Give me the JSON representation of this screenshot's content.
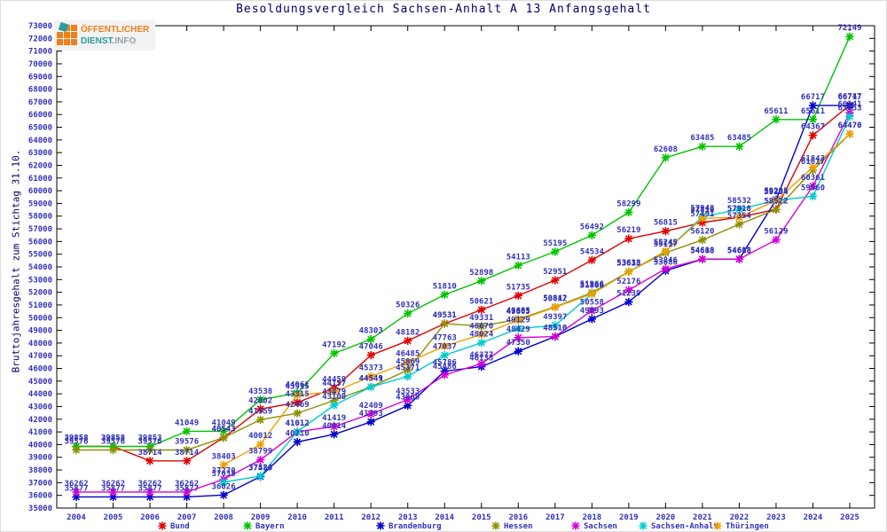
{
  "title": "Besoldungsvergleich Sachsen-Anhalt A 13 Anfangsgehalt",
  "y_axis_title": "Bruttojahresgehalt zum Stichtag 31.10.",
  "watermark": {
    "line1": "ÖFFENTLICHER",
    "line2_a": "DIENST.",
    "line2_b": "INFO"
  },
  "colors": {
    "axis_text": "#3333bb",
    "label_text": "#3333bb",
    "title_text": "#000066",
    "frame": "#000000"
  },
  "chart_data": {
    "type": "line",
    "title": "Besoldungsvergleich Sachsen-Anhalt A 13 Anfangsgehalt",
    "xlabel": "",
    "ylabel": "Bruttojahresgehalt zum Stichtag 31.10.",
    "ylim": [
      35000,
      73000
    ],
    "ytick_step": 1000,
    "grid": false,
    "legend_position": "bottom",
    "marker": "star",
    "point_labels": true,
    "x": [
      2004,
      2005,
      2006,
      2007,
      2008,
      2009,
      2010,
      2011,
      2012,
      2013,
      2014,
      2015,
      2016,
      2017,
      2018,
      2019,
      2020,
      2021,
      2022,
      2023,
      2024,
      2025
    ],
    "series": [
      {
        "name": "Bund",
        "color": "#e00000",
        "values": [
          39858,
          39858,
          38714,
          38714,
          40543,
          42802,
          43315,
          44459,
          47046,
          48182,
          49531,
          50621,
          51735,
          52951,
          54534,
          56219,
          56815,
          57491,
          57918,
          58522,
          64367,
          66747
        ]
      },
      {
        "name": "Bayern",
        "color": "#00c400",
        "values": [
          39858,
          39858,
          39853,
          41049,
          41049,
          43538,
          44061,
          47192,
          48303,
          50326,
          51810,
          52898,
          54113,
          55195,
          56492,
          58299,
          62608,
          63485,
          63485,
          65611,
          65611,
          72149
        ]
      },
      {
        "name": "Brandenburg",
        "color": "#0000cc",
        "values": [
          35877,
          35877,
          35877,
          35877,
          36026,
          37480,
          40210,
          40814,
          41793,
          43069,
          45786,
          46135,
          47350,
          48510,
          49893,
          51239,
          53686,
          54608,
          54608,
          59295,
          66717,
          66717
        ]
      },
      {
        "name": "Hessen",
        "color": "#8f8f00",
        "values": [
          39576,
          39576,
          39576,
          39576,
          40543,
          41959,
          42469,
          43479,
          44549,
          45869,
          49531,
          49331,
          49885,
          50847,
          51966,
          53638,
          55117,
          56120,
          57354,
          58522,
          61617,
          64470
        ]
      },
      {
        "name": "Sachsen",
        "color": "#d600d6",
        "values": [
          36262,
          36262,
          36262,
          36262,
          37270,
          38799,
          41012,
          41419,
          42409,
          43533,
          45486,
          46377,
          48429,
          48510,
          50558,
          52176,
          53846,
          54618,
          54618,
          56129,
          60361,
          66141
        ]
      },
      {
        "name": "Sachsen-Anhalt",
        "color": "#00cccc",
        "values": [
          null,
          null,
          null,
          null,
          37038,
          37524,
          41012,
          43100,
          44541,
          45371,
          47037,
          48024,
          49129,
          49397,
          51866,
          53613,
          55245,
          57948,
          58532,
          59234,
          59560,
          65853
        ]
      },
      {
        "name": "Thüringen",
        "color": "#efa000",
        "values": [
          null,
          null,
          null,
          null,
          38403,
          40012,
          43915,
          44157,
          45373,
          46485,
          47763,
          48670,
          49805,
          50812,
          51866,
          53613,
          55245,
          57818,
          57918,
          59234,
          61843,
          64470
        ]
      }
    ],
    "legend": [
      "Bund",
      "Bayern",
      "Brandenburg",
      "Hessen",
      "Sachsen",
      "Sachsen-Anhalt",
      "Thüringen"
    ]
  }
}
